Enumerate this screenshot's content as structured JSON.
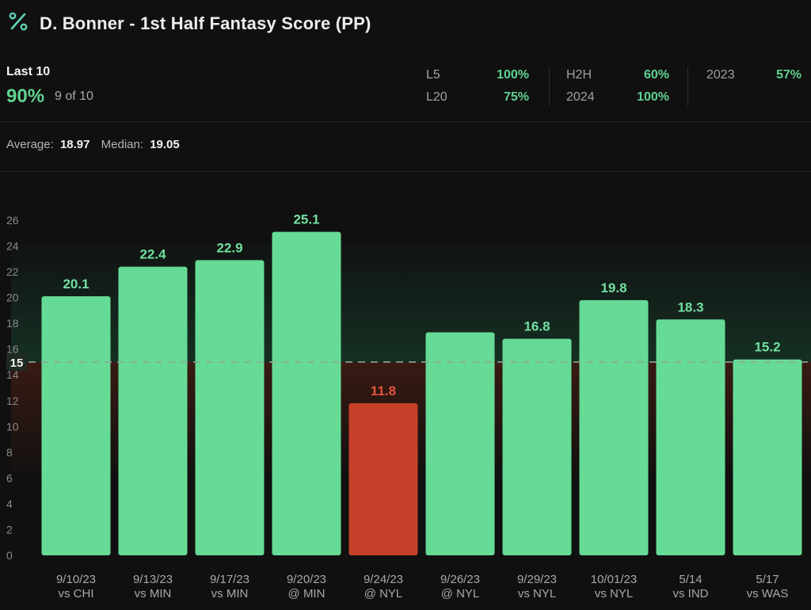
{
  "header": {
    "icon": "percent-icon",
    "title": "D. Bonner - 1st Half Fantasy Score (PP)"
  },
  "summary": {
    "last_label": "Last 10",
    "last_pct": "90%",
    "last_count": "9 of 10",
    "stats": [
      {
        "label": "L5",
        "value": "100%"
      },
      {
        "label": "L20",
        "value": "75%"
      },
      {
        "label": "H2H",
        "value": "60%"
      },
      {
        "label": "2024",
        "value": "100%"
      },
      {
        "label": "2023",
        "value": "57%"
      }
    ]
  },
  "averages": {
    "average_label": "Average:",
    "average_value": "18.97",
    "median_label": "Median:",
    "median_value": "19.05"
  },
  "colors": {
    "hit": "#66db96",
    "miss": "#c6412a",
    "hit_label": "#72e0a0",
    "miss_label": "#e2543c"
  },
  "chart_data": {
    "type": "bar",
    "line": 15,
    "line_label": "15",
    "ylim": [
      0,
      26
    ],
    "yticks": [
      0,
      2,
      4,
      6,
      8,
      10,
      12,
      14,
      16,
      18,
      20,
      22,
      24,
      26
    ],
    "categories": [
      {
        "date": "9/10/23",
        "opp": "vs CHI"
      },
      {
        "date": "9/13/23",
        "opp": "vs MIN"
      },
      {
        "date": "9/17/23",
        "opp": "vs MIN"
      },
      {
        "date": "9/20/23",
        "opp": "@ MIN"
      },
      {
        "date": "9/24/23",
        "opp": "@ NYL"
      },
      {
        "date": "9/26/23",
        "opp": "@ NYL"
      },
      {
        "date": "9/29/23",
        "opp": "vs NYL"
      },
      {
        "date": "10/01/23",
        "opp": "vs NYL"
      },
      {
        "date": "5/14",
        "opp": "vs IND"
      },
      {
        "date": "5/17",
        "opp": "vs WAS"
      }
    ],
    "values": [
      20.1,
      22.4,
      22.9,
      25.1,
      11.8,
      17.3,
      16.8,
      19.8,
      18.3,
      15.2
    ],
    "labels": [
      "20.1",
      "22.4",
      "22.9",
      "25.1",
      "11.8",
      "",
      "16.8",
      "19.8",
      "18.3",
      "15.2"
    ]
  }
}
